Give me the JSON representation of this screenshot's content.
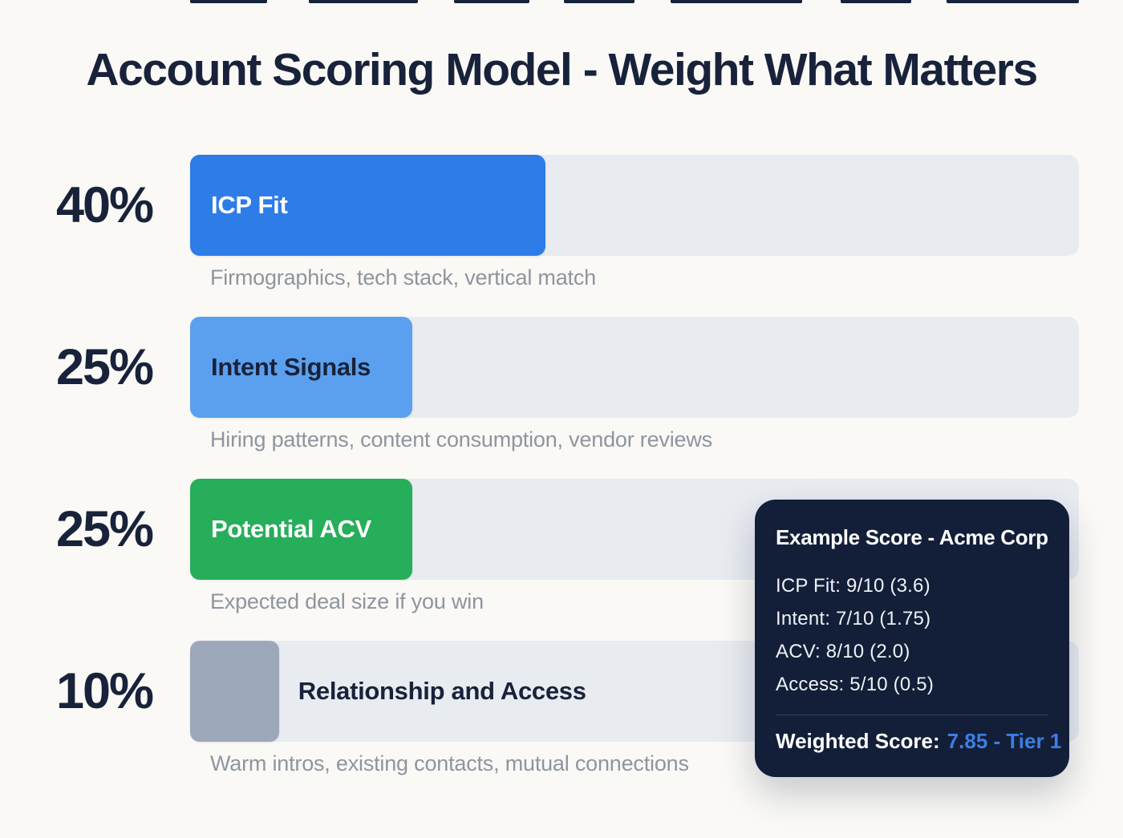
{
  "page": {
    "title": "Account Scoring Model - Weight What Matters",
    "background": "#faf9f6"
  },
  "colors": {
    "heading_text": "#18223a",
    "caption_text": "#8e959f",
    "bar_track": "#e8ebf0",
    "card_background": "#131f38",
    "card_divider": "#303f5c",
    "accent_blue": "#3c7ee4"
  },
  "rows": [
    {
      "percent": "40%",
      "value": 40,
      "label": "ICP Fit",
      "label_color": "#ffffff",
      "fill_color": "#2e7ce8",
      "caption": "Firmographics, tech stack, vertical match"
    },
    {
      "percent": "25%",
      "value": 25,
      "label": "Intent Signals",
      "label_color": "#18223a",
      "fill_color": "#5ba0ee",
      "caption": "Hiring patterns, content consumption, vendor reviews"
    },
    {
      "percent": "25%",
      "value": 25,
      "label": "Potential ACV",
      "label_color": "#ffffff",
      "fill_color": "#27ae5b",
      "caption": "Expected deal size if you win"
    },
    {
      "percent": "10%",
      "value": 10,
      "label": "Relationship and Access",
      "label_color": "#18223a",
      "fill_color": "#9ca8ba",
      "caption": "Warm intros, existing contacts, mutual connections"
    }
  ],
  "score_card": {
    "title": "Example Score - Acme Corp",
    "lines": [
      "ICP Fit: 9/10 (3.6)",
      "Intent: 7/10 (1.75)",
      "ACV: 8/10 (2.0)",
      "Access: 5/10 (0.5)"
    ],
    "weighted_label": "Weighted Score:",
    "weighted_value": "7.85 - Tier 1",
    "accent_color": "#3c7ee4"
  },
  "chart_data": {
    "type": "bar",
    "orientation": "horizontal",
    "title": "Account Scoring Model - Weight What Matters",
    "categories": [
      "ICP Fit",
      "Intent Signals",
      "Potential ACV",
      "Relationship and Access"
    ],
    "values": [
      40,
      25,
      25,
      10
    ],
    "unit": "%",
    "xlim": [
      0,
      100
    ],
    "grid": false,
    "legend": false,
    "category_descriptions": [
      "Firmographics, tech stack, vertical match",
      "Hiring patterns, content consumption, vendor reviews",
      "Expected deal size if you win",
      "Warm intros, existing contacts, mutual connections"
    ],
    "annotation_card": {
      "title": "Example Score - Acme Corp",
      "scores": [
        {
          "metric": "ICP Fit",
          "raw": "9/10",
          "weighted": 3.6
        },
        {
          "metric": "Intent",
          "raw": "7/10",
          "weighted": 1.75
        },
        {
          "metric": "ACV",
          "raw": "8/10",
          "weighted": 2.0
        },
        {
          "metric": "Access",
          "raw": "5/10",
          "weighted": 0.5
        }
      ],
      "weighted_score": 7.85,
      "tier": "Tier 1"
    }
  }
}
